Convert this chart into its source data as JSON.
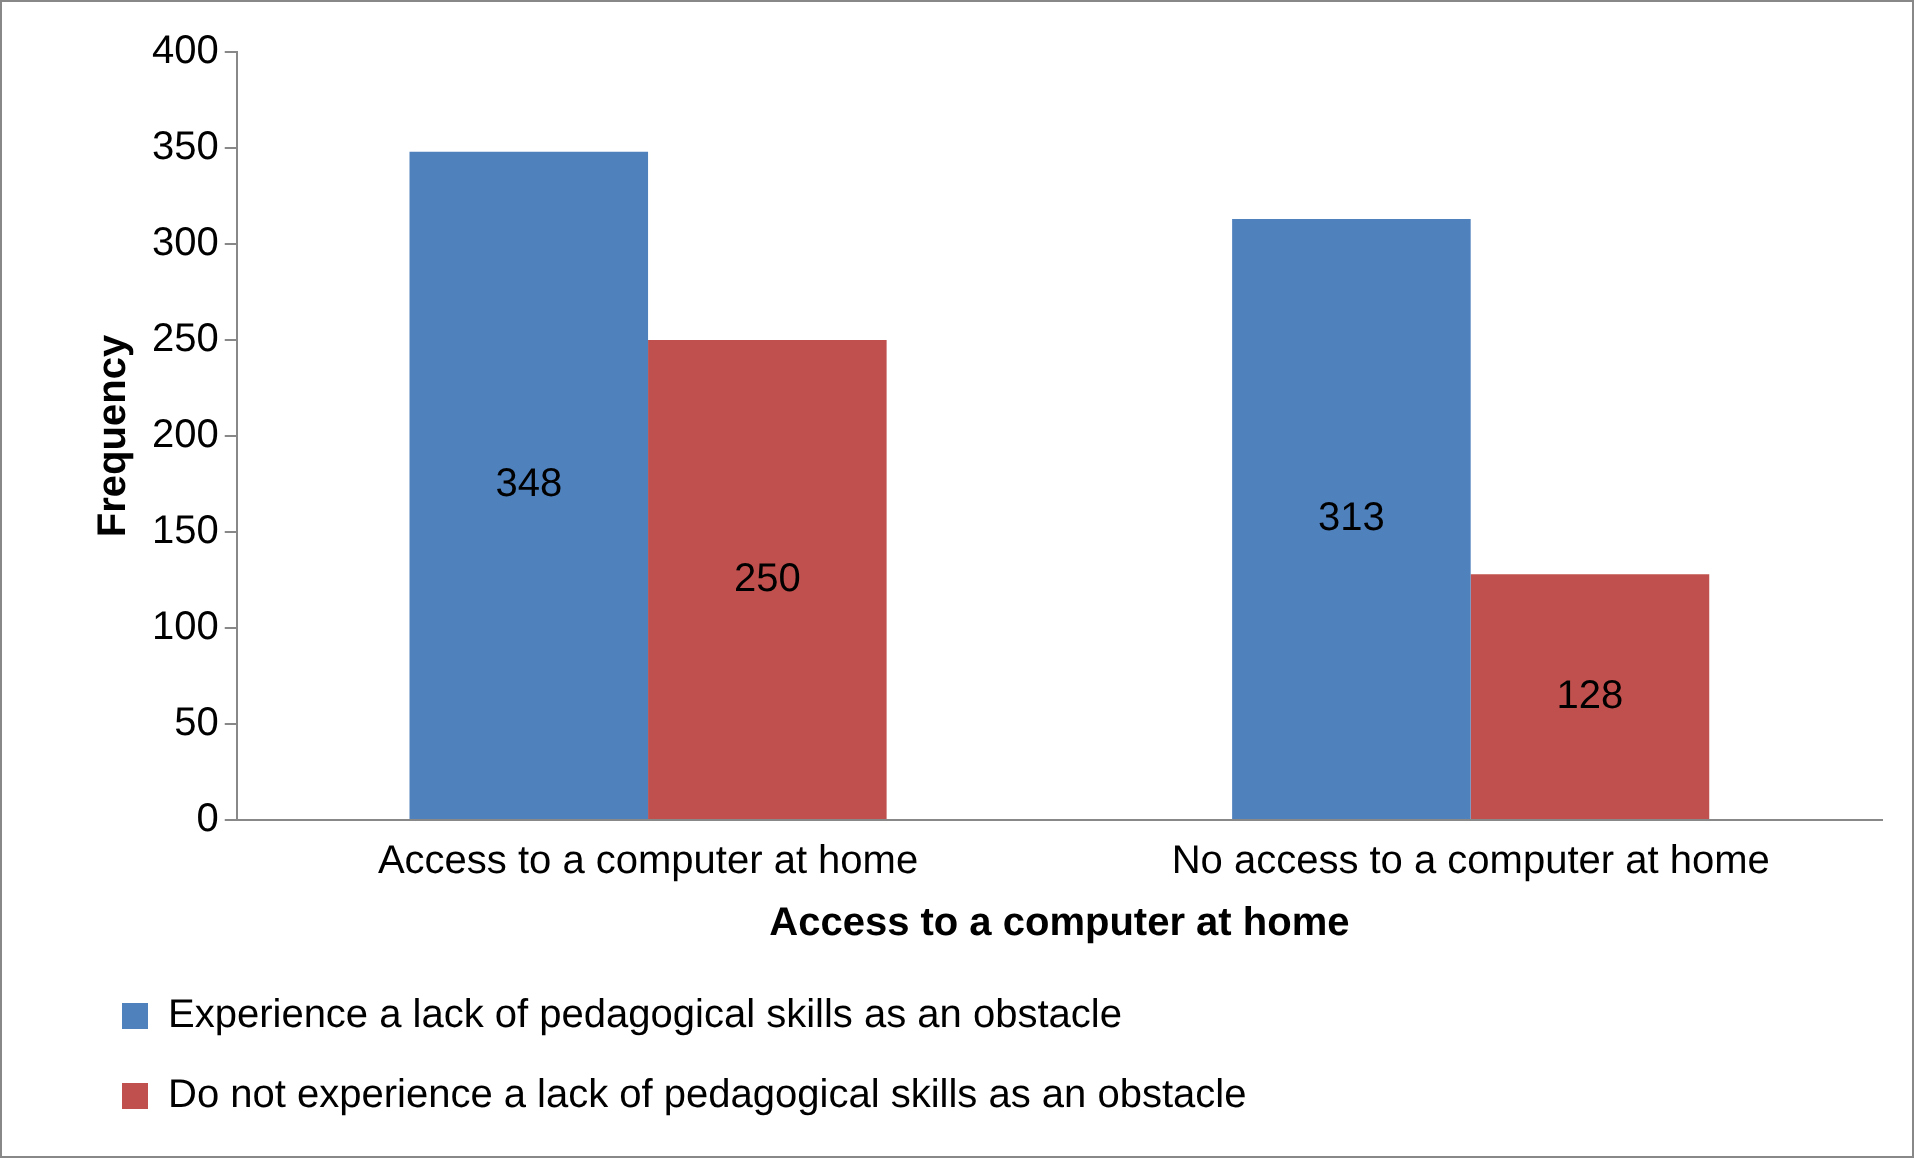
{
  "chart_data": {
    "type": "bar",
    "xlabel": "Access to a computer at home",
    "ylabel": "Frequency",
    "categories": [
      "Access to a computer at home",
      "No access to a computer at home"
    ],
    "series": [
      {
        "name": "Experience a lack of pedagogical skills as an obstacle",
        "color": "#4f81bd",
        "values": [
          348,
          313
        ]
      },
      {
        "name": "Do not experience a lack of pedagogical skills as an obstacle",
        "color": "#c0504d",
        "values": [
          250,
          128
        ]
      }
    ],
    "ylim": [
      0,
      400
    ],
    "yticks": [
      0,
      50,
      100,
      150,
      200,
      250,
      300,
      350,
      400
    ],
    "grid": false,
    "legend": "bottom",
    "data_labels": true
  }
}
